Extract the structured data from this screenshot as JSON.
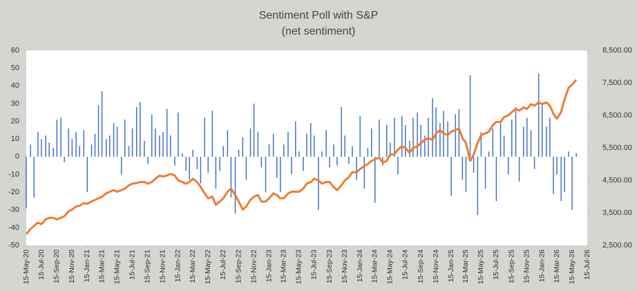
{
  "chart_data": {
    "type": "bar",
    "title": "Sentiment Poll with S&P",
    "subtitle": "(net sentiment)",
    "x": [
      "2020-05-15",
      "2020-06-01",
      "2020-06-15",
      "2020-07-01",
      "2020-07-15",
      "2020-08-01",
      "2020-08-15",
      "2020-09-01",
      "2020-09-15",
      "2020-10-01",
      "2020-10-15",
      "2020-11-01",
      "2020-11-15",
      "2020-12-01",
      "2020-12-15",
      "2021-01-01",
      "2021-01-15",
      "2021-02-01",
      "2021-02-15",
      "2021-03-01",
      "2021-03-15",
      "2021-04-01",
      "2021-04-15",
      "2021-05-01",
      "2021-05-15",
      "2021-06-01",
      "2021-06-15",
      "2021-07-01",
      "2021-07-15",
      "2021-08-01",
      "2021-08-15",
      "2021-09-01",
      "2021-09-15",
      "2021-10-01",
      "2021-10-15",
      "2021-11-01",
      "2021-11-15",
      "2021-12-01",
      "2021-12-15",
      "2022-01-01",
      "2022-01-15",
      "2022-02-01",
      "2022-02-15",
      "2022-03-01",
      "2022-03-15",
      "2022-04-01",
      "2022-04-15",
      "2022-05-01",
      "2022-05-15",
      "2022-06-01",
      "2022-06-15",
      "2022-07-01",
      "2022-07-15",
      "2022-08-01",
      "2022-08-15",
      "2022-09-01",
      "2022-09-15",
      "2022-10-01",
      "2022-10-15",
      "2022-11-01",
      "2022-11-15",
      "2022-12-01",
      "2022-12-15",
      "2023-01-01",
      "2023-01-15",
      "2023-02-01",
      "2023-02-15",
      "2023-03-01",
      "2023-03-15",
      "2023-04-01",
      "2023-04-15",
      "2023-05-01",
      "2023-05-15",
      "2023-06-01",
      "2023-06-15",
      "2023-07-01",
      "2023-07-15",
      "2023-08-01",
      "2023-08-15",
      "2023-09-01",
      "2023-09-15",
      "2023-10-01",
      "2023-10-15",
      "2023-11-01",
      "2023-11-15",
      "2023-12-01",
      "2023-12-15",
      "2024-01-01",
      "2024-01-15",
      "2024-02-01",
      "2024-02-15",
      "2024-03-01",
      "2024-03-15",
      "2024-04-01",
      "2024-04-15",
      "2024-05-01",
      "2024-05-15",
      "2024-06-01",
      "2024-06-15",
      "2024-07-01",
      "2024-07-15",
      "2024-08-01",
      "2024-08-15",
      "2024-09-01",
      "2024-09-15",
      "2024-10-01",
      "2024-10-15",
      "2024-11-01",
      "2024-11-15",
      "2024-12-01",
      "2024-12-15",
      "2025-01-01",
      "2025-01-15",
      "2025-02-01",
      "2025-02-15",
      "2025-03-01",
      "2025-03-15",
      "2025-04-01",
      "2025-04-15",
      "2025-05-01",
      "2025-05-15",
      "2025-06-01",
      "2025-06-15",
      "2025-07-01",
      "2025-07-15",
      "2025-08-01",
      "2025-08-15",
      "2025-09-01",
      "2025-09-15",
      "2025-10-01",
      "2025-10-15",
      "2025-11-01",
      "2025-11-15",
      "2025-12-01",
      "2025-12-15",
      "2026-01-01",
      "2026-01-15",
      "2026-02-01",
      "2026-02-15",
      "2026-03-01",
      "2026-03-15",
      "2026-04-01",
      "2026-04-15",
      "2026-05-01",
      "2026-05-15",
      "2026-06-01"
    ],
    "series": [
      {
        "type": "bar",
        "color": "#4472c4",
        "values": [
          -29,
          7,
          -23,
          14,
          10,
          12,
          8,
          5,
          21,
          22,
          -3,
          16,
          10,
          14,
          6,
          15,
          -20,
          7,
          13,
          29,
          37,
          10,
          12,
          19,
          17,
          -10,
          21,
          6,
          16,
          28,
          31,
          9,
          -4,
          24,
          16,
          12,
          14,
          27,
          12,
          -5,
          25,
          2,
          -8,
          -13,
          4,
          -7,
          -15,
          22,
          -9,
          26,
          -18,
          -8,
          6,
          15,
          -23,
          -32,
          4,
          11,
          -13,
          16,
          30,
          14,
          -6,
          -20,
          7,
          13,
          -12,
          -20,
          7,
          14,
          -10,
          20,
          3,
          -8,
          13,
          19,
          12,
          -30,
          3,
          15,
          -6,
          7,
          -5,
          28,
          12,
          -4,
          6,
          -13,
          23,
          -18,
          5,
          16,
          -26,
          21,
          -5,
          18,
          8,
          22,
          -10,
          23,
          18,
          9,
          22,
          25,
          18,
          12,
          22,
          33,
          28,
          19,
          26,
          20,
          -22,
          24,
          27,
          -13,
          -20,
          46,
          -9,
          -33,
          14,
          -18,
          3,
          16,
          -25,
          19,
          12,
          -10,
          21,
          28,
          -14,
          17,
          22,
          15,
          -7,
          47,
          30,
          17,
          22,
          -21,
          -10,
          -25,
          -20,
          3,
          -30,
          2
        ]
      },
      {
        "type": "line",
        "color": "#ed7d31",
        "axis": "y2",
        "values": [
          2850,
          3000,
          3100,
          3200,
          3150,
          3300,
          3350,
          3350,
          3300,
          3350,
          3400,
          3550,
          3600,
          3700,
          3720,
          3800,
          3780,
          3850,
          3900,
          3950,
          4000,
          4100,
          4150,
          4200,
          4150,
          4200,
          4250,
          4350,
          4400,
          4420,
          4450,
          4450,
          4400,
          4450,
          4550,
          4650,
          4620,
          4650,
          4700,
          4650,
          4500,
          4450,
          4400,
          4450,
          4550,
          4450,
          4300,
          4100,
          3950,
          4000,
          3750,
          3850,
          3950,
          4150,
          4250,
          4050,
          3850,
          3600,
          3700,
          3900,
          4000,
          4050,
          3850,
          3850,
          3950,
          4100,
          4050,
          3950,
          3950,
          4100,
          4150,
          4150,
          4150,
          4250,
          4400,
          4450,
          4550,
          4500,
          4400,
          4450,
          4450,
          4300,
          4200,
          4350,
          4500,
          4600,
          4750,
          4750,
          4850,
          4950,
          5000,
          5100,
          5150,
          5200,
          5050,
          5100,
          5300,
          5300,
          5450,
          5550,
          5500,
          5350,
          5500,
          5550,
          5650,
          5750,
          5800,
          5750,
          5950,
          6050,
          5950,
          5900,
          6000,
          6050,
          6100,
          5800,
          5650,
          5100,
          5300,
          5650,
          5900,
          5950,
          6000,
          6200,
          6300,
          6300,
          6450,
          6500,
          6600,
          6700,
          6650,
          6750,
          6700,
          6850,
          6800,
          6900,
          6850,
          6900,
          6800,
          6550,
          6400,
          6600,
          7000,
          7350,
          7450,
          7600
        ]
      }
    ],
    "xlim": [
      "2020-05-15",
      "2026-07-15"
    ],
    "xticks": [
      {
        "value": "2020-05-15",
        "label": "15-May-20"
      },
      {
        "value": "2020-07-15",
        "label": "15-Jul-20"
      },
      {
        "value": "2020-09-15",
        "label": "15-Sep-20"
      },
      {
        "value": "2020-11-15",
        "label": "15-Nov-20"
      },
      {
        "value": "2021-01-15",
        "label": "15-Jan-21"
      },
      {
        "value": "2021-03-15",
        "label": "15-Mar-21"
      },
      {
        "value": "2021-05-15",
        "label": "15-May-21"
      },
      {
        "value": "2021-07-15",
        "label": "15-Jul-21"
      },
      {
        "value": "2021-09-15",
        "label": "15-Sep-21"
      },
      {
        "value": "2021-11-15",
        "label": "15-Nov-21"
      },
      {
        "value": "2022-01-15",
        "label": "15-Jan-22"
      },
      {
        "value": "2022-03-15",
        "label": "15-Mar-22"
      },
      {
        "value": "2022-05-15",
        "label": "15-May-22"
      },
      {
        "value": "2022-07-15",
        "label": "15-Jul-22"
      },
      {
        "value": "2022-09-15",
        "label": "15-Sep-22"
      },
      {
        "value": "2022-11-15",
        "label": "15-Nov-22"
      },
      {
        "value": "2023-01-15",
        "label": "15-Jan-23"
      },
      {
        "value": "2023-03-15",
        "label": "15-Mar-23"
      },
      {
        "value": "2023-05-15",
        "label": "15-May-23"
      },
      {
        "value": "2023-07-15",
        "label": "15-Jul-23"
      },
      {
        "value": "2023-09-15",
        "label": "15-Sep-23"
      },
      {
        "value": "2023-11-15",
        "label": "15-Nov-23"
      },
      {
        "value": "2024-01-15",
        "label": "15-Jan-24"
      },
      {
        "value": "2024-03-15",
        "label": "15-Mar-24"
      },
      {
        "value": "2024-05-15",
        "label": "15-May-24"
      },
      {
        "value": "2024-07-15",
        "label": "15-Jul-24"
      },
      {
        "value": "2024-09-15",
        "label": "15-Sep-24"
      },
      {
        "value": "2024-11-15",
        "label": "15-Nov-24"
      },
      {
        "value": "2025-01-15",
        "label": "15-Jan-25"
      },
      {
        "value": "2025-03-15",
        "label": "15-Mar-25"
      },
      {
        "value": "2025-05-15",
        "label": "15-May-25"
      },
      {
        "value": "2025-07-15",
        "label": "15-Jul-25"
      },
      {
        "value": "2025-09-15",
        "label": "15-Sep-25"
      },
      {
        "value": "2025-11-15",
        "label": "15-Nov-25"
      },
      {
        "value": "2026-01-15",
        "label": "15-Jan-26"
      },
      {
        "value": "2026-03-15",
        "label": "15-Mar-26"
      },
      {
        "value": "2026-05-15",
        "label": "15-May-26"
      },
      {
        "value": "2026-07-15",
        "label": "15-Jul-26"
      }
    ],
    "ylim": [
      -50,
      60
    ],
    "yticks": [
      -50,
      -40,
      -30,
      -20,
      -10,
      0,
      10,
      20,
      30,
      40,
      50,
      60
    ],
    "y2lim": [
      2500,
      8500
    ],
    "y2ticks": [
      {
        "value": 2500,
        "label": "2,500.00"
      },
      {
        "value": 3500,
        "label": "3,500.00"
      },
      {
        "value": 4500,
        "label": "4,500.00"
      },
      {
        "value": 5500,
        "label": "5,500.00"
      },
      {
        "value": 6500,
        "label": "6,500.00"
      },
      {
        "value": 7500,
        "label": "7,500.00"
      },
      {
        "value": 8500,
        "label": "8,500.00"
      }
    ],
    "grid": false
  }
}
